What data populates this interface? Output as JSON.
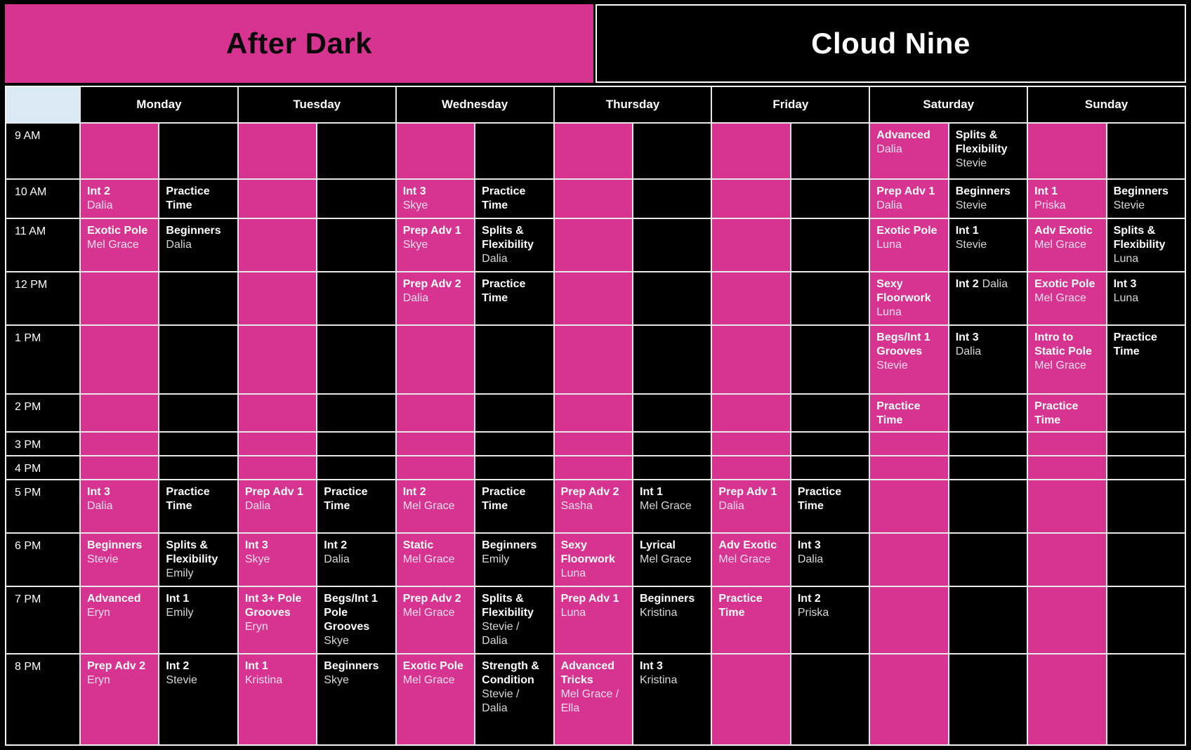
{
  "banner": {
    "left_studio": "After Dark",
    "right_studio": "Cloud Nine"
  },
  "days": [
    "Monday",
    "Tuesday",
    "Wednesday",
    "Thursday",
    "Friday",
    "Saturday",
    "Sunday"
  ],
  "times": [
    "9 AM",
    "10 AM",
    "11 AM",
    "12 PM",
    "1 PM",
    "2 PM",
    "3 PM",
    "4 PM",
    "5 PM",
    "6 PM",
    "7 PM",
    "8 PM"
  ],
  "colors": {
    "after_dark_pink": "#d73390",
    "cloud_nine_black": "#000000",
    "corner_blue": "#dbe9f4",
    "grid_line": "#e8e8e8",
    "header_text": "#ffffff",
    "banner_left_text": "#0a0a0a"
  },
  "schedule": {
    "Monday": [
      null,
      {
        "pink": {
          "title": "Int 2",
          "instructor": "Dalia"
        },
        "black": {
          "title": "Practice Time"
        }
      },
      {
        "pink": {
          "title": "Exotic Pole",
          "instructor": "Mel Grace"
        },
        "black": {
          "title": "Beginners",
          "instructor": "Dalia"
        }
      },
      null,
      null,
      null,
      null,
      null,
      {
        "pink": {
          "title": "Int 3",
          "instructor": "Dalia"
        },
        "black": {
          "title": "Practice Time"
        }
      },
      {
        "pink": {
          "title": "Beginners",
          "instructor": "Stevie"
        },
        "black": {
          "title": "Splits & Flexibility",
          "instructor": "Emily"
        }
      },
      {
        "pink": {
          "title": "Advanced",
          "instructor": "Eryn"
        },
        "black": {
          "title": "Int 1",
          "instructor": "Emily"
        }
      },
      {
        "pink": {
          "title": "Prep Adv 2",
          "instructor": "Eryn"
        },
        "black": {
          "title": "Int 2",
          "instructor": "Stevie"
        }
      }
    ],
    "Tuesday": [
      null,
      null,
      null,
      null,
      null,
      null,
      null,
      null,
      {
        "pink": {
          "title": "Prep Adv 1",
          "instructor": "Dalia"
        },
        "black": {
          "title": "Practice Time"
        }
      },
      {
        "pink": {
          "title": "Int 3",
          "instructor": "Skye"
        },
        "black": {
          "title": "Int 2",
          "instructor": "Dalia"
        }
      },
      {
        "pink": {
          "title": "Int 3+ Pole Grooves",
          "instructor": "Eryn"
        },
        "black": {
          "title": "Begs/Int 1 Pole Grooves",
          "instructor": "Skye"
        }
      },
      {
        "pink": {
          "title": "Int 1",
          "instructor": "Kristina"
        },
        "black": {
          "title": "Beginners",
          "instructor": "Skye"
        }
      }
    ],
    "Wednesday": [
      null,
      {
        "pink": {
          "title": "Int 3",
          "instructor": "Skye"
        },
        "black": {
          "title": "Practice Time"
        }
      },
      {
        "pink": {
          "title": "Prep Adv 1",
          "instructor": "Skye"
        },
        "black": {
          "title": "Splits & Flexibility",
          "instructor": "Dalia"
        }
      },
      {
        "pink": {
          "title": "Prep Adv 2",
          "instructor": "Dalia"
        },
        "black": {
          "title": "Practice Time"
        }
      },
      null,
      null,
      null,
      null,
      {
        "pink": {
          "title": "Int 2",
          "instructor": "Mel Grace"
        },
        "black": {
          "title": "Practice Time"
        }
      },
      {
        "pink": {
          "title": "Static",
          "instructor": "Mel Grace"
        },
        "black": {
          "title": "Beginners",
          "instructor": "Emily"
        }
      },
      {
        "pink": {
          "title": "Prep Adv 2",
          "instructor": "Mel Grace"
        },
        "black": {
          "title": "Splits & Flexibility",
          "instructor": "Stevie / Dalia"
        }
      },
      {
        "pink": {
          "title": "Exotic Pole",
          "instructor": "Mel Grace"
        },
        "black": {
          "title": "Strength & Condition",
          "instructor": "Stevie / Dalia"
        }
      }
    ],
    "Thursday": [
      null,
      null,
      null,
      null,
      null,
      null,
      null,
      null,
      {
        "pink": {
          "title": "Prep Adv 2",
          "instructor": "Sasha"
        },
        "black": {
          "title": "Int 1",
          "instructor": "Mel Grace"
        }
      },
      {
        "pink": {
          "title": "Sexy Floorwork",
          "instructor": "Luna"
        },
        "black": {
          "title": "Lyrical",
          "instructor": "Mel Grace"
        }
      },
      {
        "pink": {
          "title": "Prep Adv 1",
          "instructor": "Luna"
        },
        "black": {
          "title": "Beginners",
          "instructor": "Kristina"
        }
      },
      {
        "pink": {
          "title": "Advanced Tricks",
          "instructor": "Mel Grace / Ella"
        },
        "black": {
          "title": "Int 3",
          "instructor": "Kristina"
        }
      }
    ],
    "Friday": [
      null,
      null,
      null,
      null,
      null,
      null,
      null,
      null,
      {
        "pink": {
          "title": "Prep Adv 1",
          "instructor": "Dalia"
        },
        "black": {
          "title": "Practice Time"
        }
      },
      {
        "pink": {
          "title": "Adv Exotic",
          "instructor": "Mel Grace"
        },
        "black": {
          "title": "Int 3",
          "instructor": "Dalia"
        }
      },
      {
        "pink": {
          "title": "Practice Time"
        },
        "black": {
          "title": "Int 2",
          "instructor": "Priska"
        }
      },
      null
    ],
    "Saturday": [
      {
        "pink": {
          "title": "Advanced",
          "instructor": "Dalia"
        },
        "black": {
          "title": "Splits & Flexibility",
          "instructor": "Stevie"
        }
      },
      {
        "pink": {
          "title": "Prep Adv 1",
          "instructor": "Dalia"
        },
        "black": {
          "title": "Beginners",
          "instructor": "Stevie"
        }
      },
      {
        "pink": {
          "title": "Exotic Pole",
          "instructor": "Luna"
        },
        "black": {
          "title": "Int 1",
          "instructor": "Stevie"
        }
      },
      {
        "pink": {
          "title": "Sexy Floorwork",
          "instructor": "Luna"
        },
        "black": {
          "title": "Int 2",
          "instructor": "Dalia",
          "inline": true
        }
      },
      {
        "pink": {
          "title": "Begs/Int 1 Grooves",
          "instructor": "Stevie"
        },
        "black": {
          "title": "Int 3",
          "instructor": "Dalia"
        }
      },
      {
        "pink": {
          "title": "Practice Time"
        },
        "black": null
      },
      null,
      null,
      null,
      null,
      null,
      null
    ],
    "Sunday": [
      null,
      {
        "pink": {
          "title": "Int 1",
          "instructor": "Priska"
        },
        "black": {
          "title": "Beginners",
          "instructor": "Stevie"
        }
      },
      {
        "pink": {
          "title": "Adv Exotic",
          "instructor": "Mel Grace"
        },
        "black": {
          "title": "Splits & Flexibility",
          "instructor": "Luna"
        }
      },
      {
        "pink": {
          "title": "Exotic Pole",
          "instructor": "Mel Grace"
        },
        "black": {
          "title": "Int 3",
          "instructor": "Luna"
        }
      },
      {
        "pink": {
          "title": "Intro to Static Pole",
          "instructor": "Mel Grace"
        },
        "black": {
          "title": "Practice Time"
        }
      },
      {
        "pink": {
          "title": "Practice Time"
        },
        "black": null
      },
      null,
      null,
      null,
      null,
      null,
      null
    ]
  }
}
